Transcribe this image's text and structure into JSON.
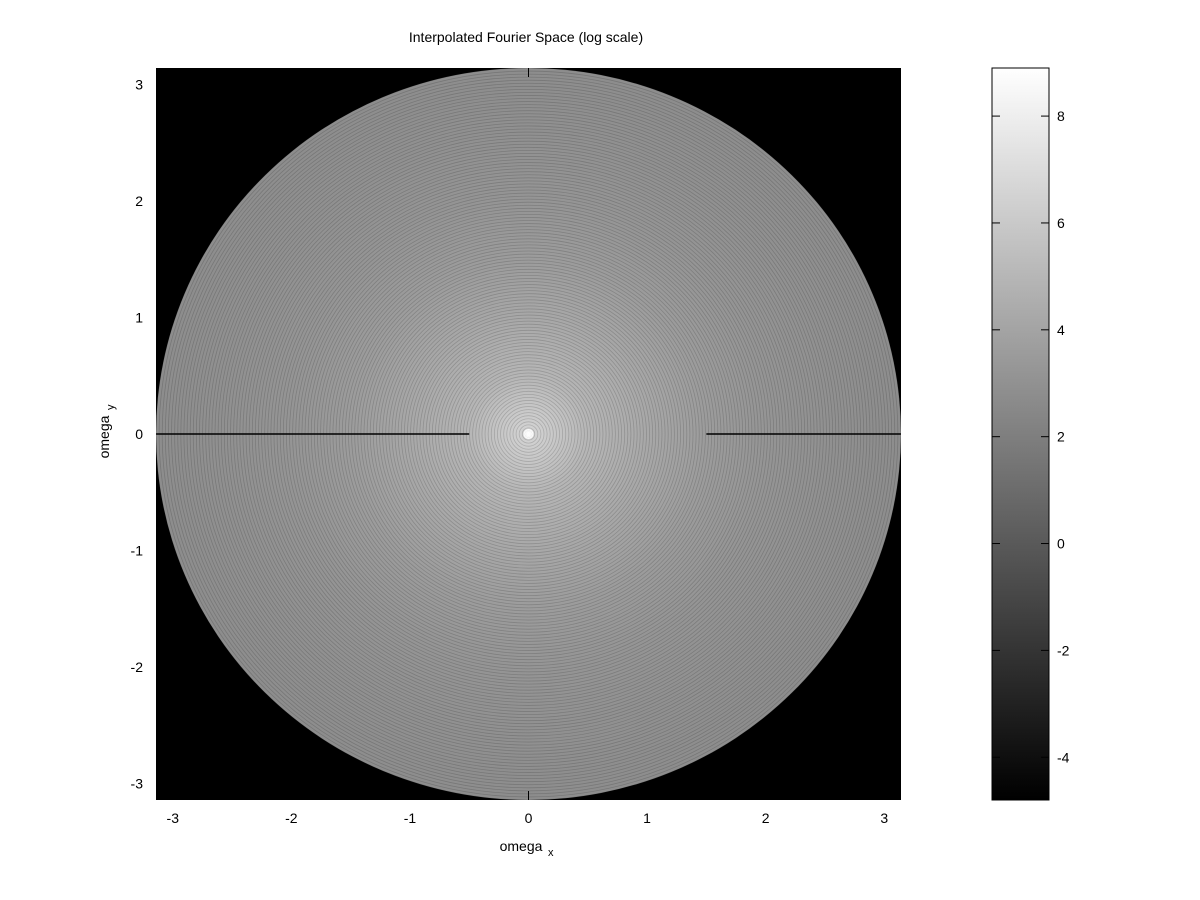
{
  "chart_data": {
    "type": "heatmap",
    "title": "Interpolated Fourier Space (log scale)",
    "xlabel": "omega",
    "xlabel_sub": "x",
    "ylabel": "omega",
    "ylabel_sub": "y",
    "xlim": [
      -3.14159,
      3.14159
    ],
    "ylim": [
      -3.14159,
      3.14159
    ],
    "x_ticks": [
      -3,
      -2,
      -1,
      0,
      1,
      2,
      3
    ],
    "y_ticks": [
      -3,
      -2,
      -1,
      0,
      1,
      2,
      3
    ],
    "colorbar": {
      "range": [
        -4.8,
        8.9
      ],
      "ticks": [
        -4,
        -2,
        0,
        2,
        4,
        6,
        8
      ],
      "colormap": "gray",
      "low_color": "#000000",
      "high_color": "#ffffff"
    },
    "grid": false,
    "legend": "none",
    "support": "disk of radius pi centered at origin; outside values at colorbar minimum",
    "profile": {
      "radius": [
        0,
        0.05,
        0.2,
        0.5,
        1.0,
        1.5,
        2.0,
        2.5,
        3.14
      ],
      "value": [
        8.9,
        6.5,
        6.0,
        5.0,
        4.2,
        3.6,
        3.2,
        3.0,
        2.8
      ]
    },
    "artifact_lines": [
      {
        "y": 0,
        "x_from": -3.14,
        "x_to": -0.5
      },
      {
        "y": 0,
        "x_from": 1.5,
        "x_to": 3.14
      }
    ]
  }
}
